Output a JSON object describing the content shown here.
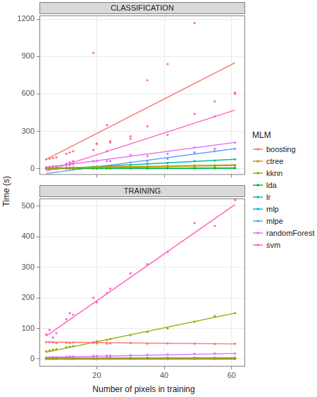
{
  "chart_data": [
    {
      "type": "scatter",
      "title": "CLASSIFICATION",
      "y_label": "Time (s)",
      "legend_title": "MLM",
      "legend": "right",
      "grid": true,
      "tick_labels": "y",
      "xlim": [
        3,
        64
      ],
      "xticks": [
        20,
        40,
        60
      ],
      "ylim": [
        -50,
        1230
      ],
      "yticks": [
        0,
        300,
        600,
        900,
        1200
      ],
      "x": [
        5,
        6,
        7,
        8,
        11,
        12,
        13,
        19,
        20,
        23,
        24,
        30,
        35,
        41,
        49,
        55,
        61
      ],
      "series": [
        {
          "name": "boosting",
          "color": "#F8766D",
          "values": [
            75,
            80,
            85,
            90,
            120,
            130,
            140,
            930,
            200,
            350,
            210,
            240,
            710,
            840,
            1170,
            540,
            600
          ],
          "fit": {
            "x": [
              5,
              61
            ],
            "values": [
              75,
              850
            ]
          }
        },
        {
          "name": "ctree",
          "color": "#D39200",
          "values": [
            4,
            4,
            5,
            5,
            7,
            8,
            8,
            12,
            12,
            14,
            14,
            17,
            20,
            23,
            26,
            28,
            30
          ],
          "fit": {
            "x": [
              5,
              61
            ],
            "values": [
              5,
              30
            ]
          }
        },
        {
          "name": "kknn",
          "color": "#93AA00",
          "values": [
            3,
            3,
            4,
            4,
            5,
            6,
            6,
            8,
            9,
            10,
            10,
            12,
            15,
            18,
            20,
            22,
            25
          ],
          "fit": {
            "x": [
              5,
              61
            ],
            "values": [
              2,
              25
            ]
          }
        },
        {
          "name": "lda",
          "color": "#00BA38",
          "values": [
            0,
            0,
            0,
            0,
            1,
            1,
            1,
            1,
            1,
            2,
            2,
            2,
            2,
            3,
            3,
            3,
            3
          ],
          "fit": {
            "x": [
              5,
              61
            ],
            "values": [
              0,
              3
            ]
          }
        },
        {
          "name": "lr",
          "color": "#00C19F",
          "values": [
            1,
            1,
            1,
            2,
            5,
            6,
            8,
            15,
            17,
            20,
            22,
            30,
            40,
            45,
            60,
            65,
            75
          ],
          "fit": {
            "x": [
              5,
              61
            ],
            "values": [
              -5,
              75
            ]
          }
        },
        {
          "name": "mlp",
          "color": "#00B9E3",
          "values": [
            1,
            1,
            1,
            1,
            2,
            2,
            2,
            3,
            3,
            3,
            3,
            4,
            4,
            5,
            5,
            6,
            6
          ],
          "fit": {
            "x": [
              5,
              61
            ],
            "values": [
              1,
              6
            ]
          }
        },
        {
          "name": "mlpe",
          "color": "#619CFF",
          "values": [
            2,
            3,
            3,
            3,
            5,
            5,
            6,
            10,
            10,
            12,
            12,
            50,
            60,
            80,
            130,
            140,
            160
          ],
          "fit": {
            "x": [
              5,
              61
            ],
            "values": [
              -40,
              160
            ]
          }
        },
        {
          "name": "randomForest",
          "color": "#DB72FB",
          "values": [
            10,
            12,
            15,
            15,
            25,
            30,
            35,
            60,
            60,
            60,
            60,
            110,
            100,
            120,
            170,
            160,
            210
          ],
          "fit": {
            "x": [
              5,
              61
            ],
            "values": [
              10,
              210
            ]
          }
        },
        {
          "name": "svm",
          "color": "#FF61C3",
          "values": [
            10,
            15,
            20,
            20,
            40,
            50,
            60,
            150,
            200,
            140,
            220,
            260,
            340,
            270,
            440,
            420,
            610
          ],
          "fit": {
            "x": [
              5,
              61
            ],
            "values": [
              -20,
              470
            ]
          }
        }
      ]
    },
    {
      "type": "scatter",
      "title": "TRAINING",
      "x_label": "Number of pixels in training",
      "grid": true,
      "xlim": [
        3,
        64
      ],
      "xticks": [
        20,
        40,
        60
      ],
      "ylim": [
        -25,
        525
      ],
      "yticks": [
        0,
        100,
        200,
        300,
        400,
        500
      ],
      "x": [
        5,
        6,
        7,
        8,
        11,
        12,
        13,
        19,
        20,
        23,
        24,
        30,
        35,
        41,
        49,
        55,
        61
      ],
      "series": [
        {
          "name": "boosting",
          "color": "#F8766D",
          "values": [
            55,
            55,
            54,
            52,
            53,
            52,
            54,
            52,
            51,
            50,
            51,
            52,
            50,
            51,
            50,
            49,
            50
          ],
          "fit": {
            "x": [
              5,
              61
            ],
            "values": [
              55,
              49
            ]
          }
        },
        {
          "name": "ctree",
          "color": "#D39200",
          "values": [
            1,
            1,
            1,
            1,
            1,
            1,
            1,
            1,
            1,
            1,
            1,
            1,
            1,
            1,
            1,
            1,
            1
          ],
          "fit": {
            "x": [
              5,
              61
            ],
            "values": [
              1,
              1
            ]
          }
        },
        {
          "name": "kknn",
          "color": "#93AA00",
          "values": [
            25,
            28,
            30,
            32,
            38,
            40,
            42,
            55,
            58,
            62,
            65,
            78,
            88,
            100,
            122,
            140,
            150
          ],
          "fit": {
            "x": [
              5,
              61
            ],
            "values": [
              22,
              150
            ]
          }
        },
        {
          "name": "lda",
          "color": "#00BA38",
          "values": [
            0,
            0,
            0,
            0,
            0,
            0,
            0,
            0,
            0,
            0,
            0,
            0,
            0,
            0,
            0,
            0,
            0
          ],
          "fit": {
            "x": [
              5,
              61
            ],
            "values": [
              0,
              0
            ]
          }
        },
        {
          "name": "lr",
          "color": "#00C19F",
          "values": [
            1,
            1,
            1,
            1,
            1,
            1,
            1,
            1,
            1,
            1,
            2,
            2,
            2,
            2,
            2,
            2,
            2
          ],
          "fit": {
            "x": [
              5,
              61
            ],
            "values": [
              1,
              2
            ]
          }
        },
        {
          "name": "mlp",
          "color": "#00B9E3",
          "values": [
            2,
            2,
            2,
            2,
            2,
            2,
            2,
            2,
            2,
            3,
            3,
            3,
            3,
            3,
            3,
            3,
            3
          ],
          "fit": {
            "x": [
              5,
              61
            ],
            "values": [
              2,
              3
            ]
          }
        },
        {
          "name": "mlpe",
          "color": "#619CFF",
          "values": [
            3,
            3,
            3,
            3,
            3,
            3,
            3,
            3,
            3,
            3,
            4,
            4,
            4,
            4,
            4,
            4,
            4
          ],
          "fit": {
            "x": [
              5,
              61
            ],
            "values": [
              3,
              4
            ]
          }
        },
        {
          "name": "randomForest",
          "color": "#DB72FB",
          "values": [
            5,
            5,
            6,
            6,
            7,
            8,
            8,
            10,
            10,
            11,
            11,
            13,
            14,
            15,
            17,
            18,
            18
          ],
          "fit": {
            "x": [
              5,
              61
            ],
            "values": [
              5,
              18
            ]
          }
        },
        {
          "name": "svm",
          "color": "#FF61C3",
          "values": [
            80,
            95,
            70,
            85,
            130,
            150,
            145,
            200,
            185,
            215,
            230,
            280,
            310,
            350,
            445,
            435,
            520
          ],
          "fit": {
            "x": [
              5,
              61
            ],
            "values": [
              75,
              505
            ]
          }
        }
      ]
    }
  ]
}
